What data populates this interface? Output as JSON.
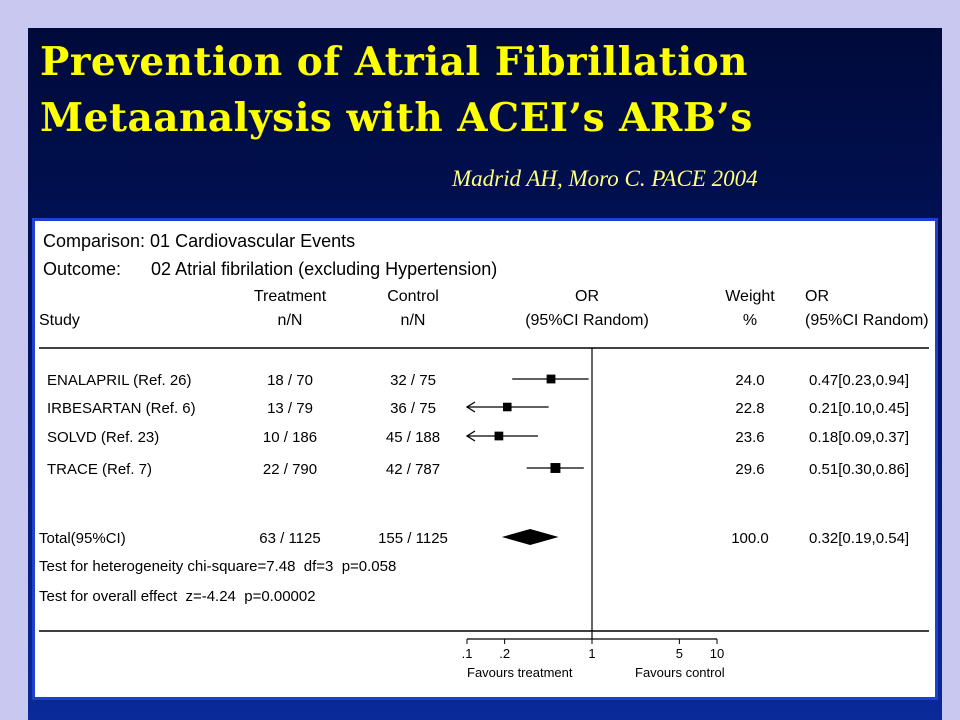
{
  "slide": {
    "title_line1": "Prevention of Atrial Fibrillation",
    "title_line2": "Metaanalysis with ACEI’s ARB’s",
    "citation": "Madrid AH,  Moro C. PACE 2004"
  },
  "colors": {
    "title": "#ffff00",
    "citation": "#ffff80",
    "background": "#02166a",
    "panel_border": "#1e40d0"
  },
  "chart_data": {
    "type": "forest",
    "comparison": "Comparison: 01 Cardiovascular Events",
    "outcome": "Outcome:      02 Atrial fibrilation (excluding Hypertension)",
    "headers": {
      "study": "Study",
      "treatment": [
        "Treatment",
        "n/N"
      ],
      "control": [
        "Control",
        "n/N"
      ],
      "or": [
        "OR",
        "(95%CI Random)"
      ],
      "weight": [
        "Weight",
        "%"
      ],
      "or_value": [
        "OR",
        "(95%CI Random)"
      ]
    },
    "scale": "log",
    "xlim": [
      0.1,
      10
    ],
    "ticks": [
      {
        "value": 0.1,
        "label": ".1"
      },
      {
        "value": 0.2,
        "label": ".2"
      },
      {
        "value": 1,
        "label": "1"
      },
      {
        "value": 5,
        "label": "5"
      },
      {
        "value": 10,
        "label": "10"
      }
    ],
    "favours_left": "Favours treatment",
    "favours_right": "Favours control",
    "studies": [
      {
        "name": "ENALAPRIL (Ref. 26)",
        "treatment": "18 / 70",
        "control": "32 / 75",
        "or": 0.47,
        "lo": 0.23,
        "hi": 0.94,
        "weight": "24.0",
        "or_text": "0.47[0.23,0.94]"
      },
      {
        "name": "IRBESARTAN (Ref. 6)",
        "treatment": "13 / 79",
        "control": "36 / 75",
        "or": 0.21,
        "lo": 0.1,
        "hi": 0.45,
        "weight": "22.8",
        "or_text": "0.21[0.10,0.45]"
      },
      {
        "name": "SOLVD (Ref. 23)",
        "treatment": "10 / 186",
        "control": "45 / 188",
        "or": 0.18,
        "lo": 0.09,
        "hi": 0.37,
        "weight": "23.6",
        "or_text": "0.18[0.09,0.37]"
      },
      {
        "name": "TRACE (Ref. 7)",
        "treatment": "22 / 790",
        "control": "42 / 787",
        "or": 0.51,
        "lo": 0.3,
        "hi": 0.86,
        "weight": "29.6",
        "or_text": "0.51[0.30,0.86]"
      }
    ],
    "total": {
      "name": "Total(95%CI)",
      "treatment": "63 / 1125",
      "control": "155 / 1125",
      "or": 0.32,
      "lo": 0.19,
      "hi": 0.54,
      "weight": "100.0",
      "or_text": "0.32[0.19,0.54]"
    },
    "heterogeneity": "Test for heterogeneity chi-square=7.48  df=3  p=0.058",
    "overall_effect": "Test for overall effect  z=-4.24  p=0.00002"
  }
}
